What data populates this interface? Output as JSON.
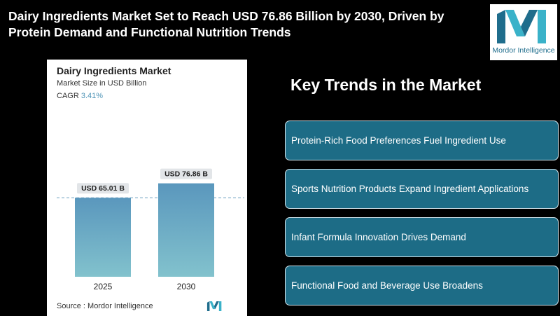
{
  "headline": "Dairy Ingredients Market Set to Reach USD 76.86 Billion by 2030, Driven by Protein Demand and Functional Nutrition Trends",
  "logo": {
    "text": "Mordor Intelligence"
  },
  "chart_card": {
    "title": "Dairy Ingredients Market",
    "subtitle": "Market Size in USD Billion",
    "cagr_label": "CAGR",
    "cagr_value": "3.41%",
    "source_label": "Source :",
    "source_value": "Mordor Intelligence"
  },
  "chart_data": {
    "type": "bar",
    "categories": [
      "2025",
      "2030"
    ],
    "values": [
      65.01,
      76.86
    ],
    "data_labels": [
      "USD 65.01 B",
      "USD 76.86 B"
    ],
    "title": "Dairy Ingredients Market",
    "subtitle": "Market Size in USD Billion",
    "ylim": [
      0,
      90
    ],
    "grid": false,
    "colors": {
      "bar_top": "#5a97bd",
      "bar_bottom": "#82c2cd",
      "label_bg": "#e2e5e8",
      "ref_line": "#6b9fc0"
    }
  },
  "trends": {
    "title": "Key Trends in the Market",
    "items": [
      "Protein-Rich Food Preferences Fuel Ingredient Use",
      "Sports Nutrition Products Expand Ingredient Applications",
      "Infant Formula Innovation Drives Demand",
      "Functional Food and Beverage Use Broadens"
    ]
  },
  "colors": {
    "background": "#000000",
    "trend_box": "#1d6c86",
    "accent": "#4f94b7"
  }
}
